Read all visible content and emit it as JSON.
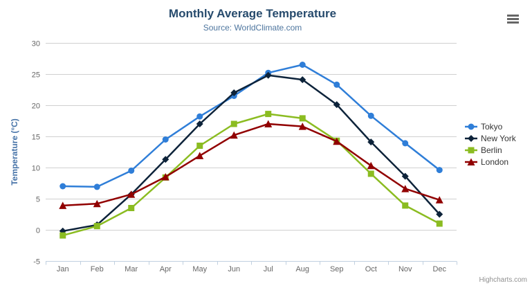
{
  "chart": {
    "title": "Monthly Average Temperature",
    "subtitle": "Source: WorldClimate.com",
    "credits": "Highcharts.com",
    "context_menu_icon": "hamburger-icon",
    "colors": {
      "title_text": "#274b6d",
      "subtitle_text": "#4d759e",
      "axis_title_text": "#4572a7",
      "axis_label_text": "#666666",
      "gridline": "#d0d0d0",
      "axis_line": "#c0d0e0",
      "legend_text": "#333333",
      "credits_text": "#909090",
      "context_button_bars": "#666666",
      "background": "#ffffff"
    }
  },
  "chart_data": {
    "type": "line",
    "title": "Monthly Average Temperature",
    "subtitle": "Source: WorldClimate.com",
    "categories": [
      "Jan",
      "Feb",
      "Mar",
      "Apr",
      "May",
      "Jun",
      "Jul",
      "Aug",
      "Sep",
      "Oct",
      "Nov",
      "Dec"
    ],
    "xlabel": "",
    "ylabel": "Temperature (°C)",
    "ylim": [
      -5,
      30
    ],
    "yticks": [
      -5,
      0,
      5,
      10,
      15,
      20,
      25,
      30
    ],
    "tick_interval": 5,
    "grid": true,
    "legend_position": "right",
    "series": [
      {
        "name": "Tokyo",
        "color": "#2f7ed8",
        "marker": "circle",
        "values": [
          7.0,
          6.9,
          9.5,
          14.5,
          18.2,
          21.5,
          25.2,
          26.5,
          23.3,
          18.3,
          13.9,
          9.6
        ]
      },
      {
        "name": "New York",
        "color": "#0d233a",
        "marker": "diamond",
        "values": [
          -0.2,
          0.8,
          5.7,
          11.3,
          17.0,
          22.0,
          24.8,
          24.1,
          20.1,
          14.1,
          8.6,
          2.5
        ]
      },
      {
        "name": "Berlin",
        "color": "#8bbc21",
        "marker": "square",
        "values": [
          -0.9,
          0.6,
          3.5,
          8.4,
          13.5,
          17.0,
          18.6,
          17.9,
          14.3,
          9.0,
          3.9,
          1.0
        ]
      },
      {
        "name": "London",
        "color": "#910000",
        "marker": "triangle",
        "values": [
          3.9,
          4.2,
          5.7,
          8.5,
          11.9,
          15.2,
          17.0,
          16.6,
          14.2,
          10.3,
          6.6,
          4.8
        ]
      }
    ]
  }
}
